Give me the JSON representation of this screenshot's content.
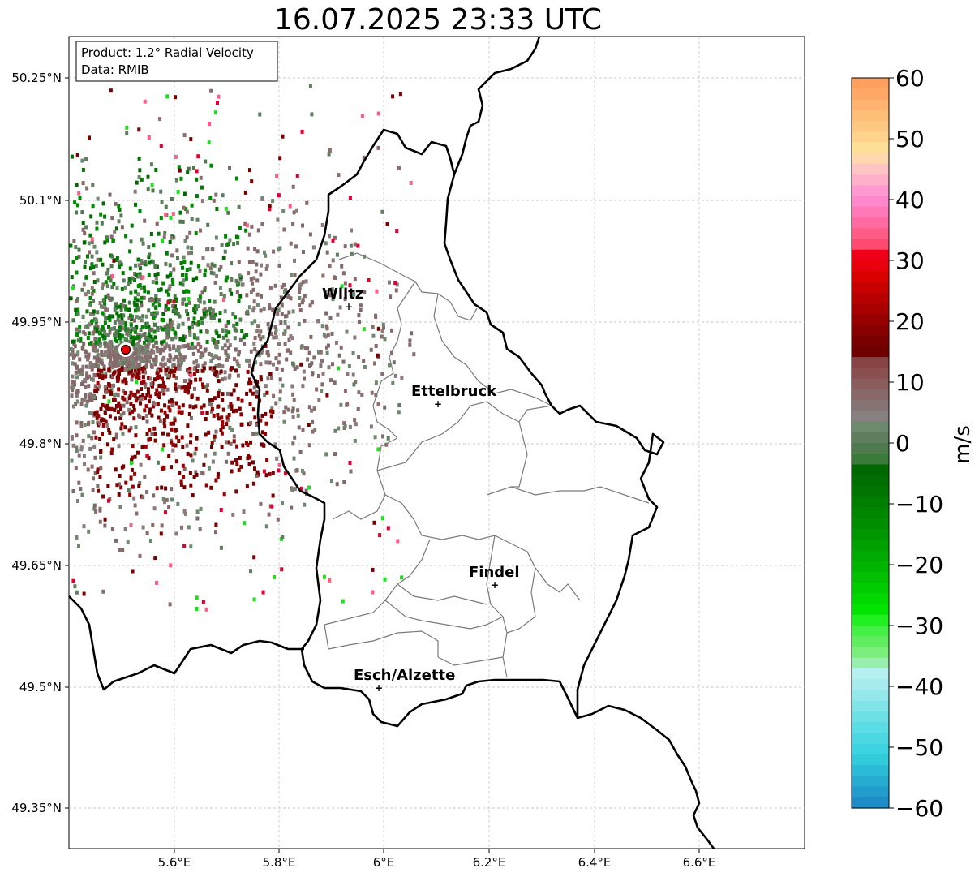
{
  "title": "16.07.2025 23:33 UTC",
  "info_box": {
    "line1": "Product: 1.2° Radial Velocity",
    "line2": "Data: RMIB"
  },
  "map": {
    "lat_ticks": [
      "50.25°N",
      "50.1°N",
      "49.95°N",
      "49.8°N",
      "49.65°N",
      "49.5°N",
      "49.35°N"
    ],
    "lon_ticks": [
      "5.6°E",
      "5.8°E",
      "6°E",
      "6.2°E",
      "6.4°E",
      "6.6°E"
    ],
    "cities": [
      {
        "name": "Wiltz"
      },
      {
        "name": "Ettelbruck"
      },
      {
        "name": "Findel"
      },
      {
        "name": "Esch/Alzette"
      }
    ],
    "radar_site_color": "#e60000",
    "colors": {
      "approaching_green": "#007a00",
      "receding_red": "#7a0000",
      "near_zero_gray": "#8a7a7a"
    }
  },
  "colorbar": {
    "label": "m/s",
    "ticks": [
      "60",
      "50",
      "40",
      "30",
      "20",
      "10",
      "0",
      "−10",
      "−20",
      "−30",
      "−40",
      "−50",
      "−60"
    ],
    "range": [
      -60,
      60
    ]
  }
}
